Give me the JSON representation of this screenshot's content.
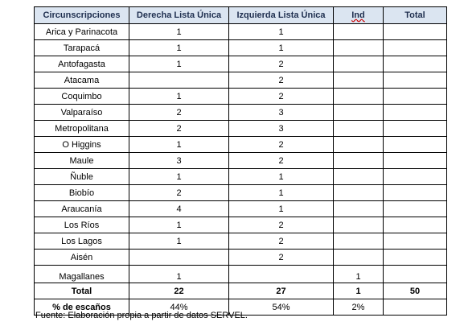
{
  "table": {
    "headers": [
      "Circunscripciones",
      "Derecha Lista Única",
      "Izquierda Lista Única",
      "Ind",
      "Total"
    ],
    "rows": [
      [
        "Arica y Parinacota",
        1,
        1,
        null,
        null
      ],
      [
        "Tarapacá",
        1,
        1,
        null,
        null
      ],
      [
        "Antofagasta",
        1,
        2,
        null,
        null
      ],
      [
        "Atacama",
        null,
        2,
        null,
        null
      ],
      [
        "Coquimbo",
        1,
        2,
        null,
        null
      ],
      [
        "Valparaíso",
        2,
        3,
        null,
        null
      ],
      [
        "Metropolitana",
        2,
        3,
        null,
        null
      ],
      [
        "O Higgins",
        1,
        2,
        null,
        null
      ],
      [
        "Maule",
        3,
        2,
        null,
        null
      ],
      [
        "Ñuble",
        1,
        1,
        null,
        null
      ],
      [
        "Biobío",
        2,
        1,
        null,
        null
      ],
      [
        "Araucanía",
        4,
        1,
        null,
        null
      ],
      [
        "Los Ríos",
        1,
        2,
        null,
        null
      ],
      [
        "Los Lagos",
        1,
        2,
        null,
        null
      ],
      [
        "Aisén",
        null,
        2,
        null,
        null
      ],
      [
        "Magallanes",
        1,
        null,
        1,
        null
      ]
    ],
    "total": [
      "Total",
      22,
      27,
      1,
      50
    ],
    "percent": [
      "% de escaños",
      "44%",
      "54%",
      "2%",
      null
    ]
  },
  "source": "Fuente: Elaboración propia a partir de datos SERVEL."
}
